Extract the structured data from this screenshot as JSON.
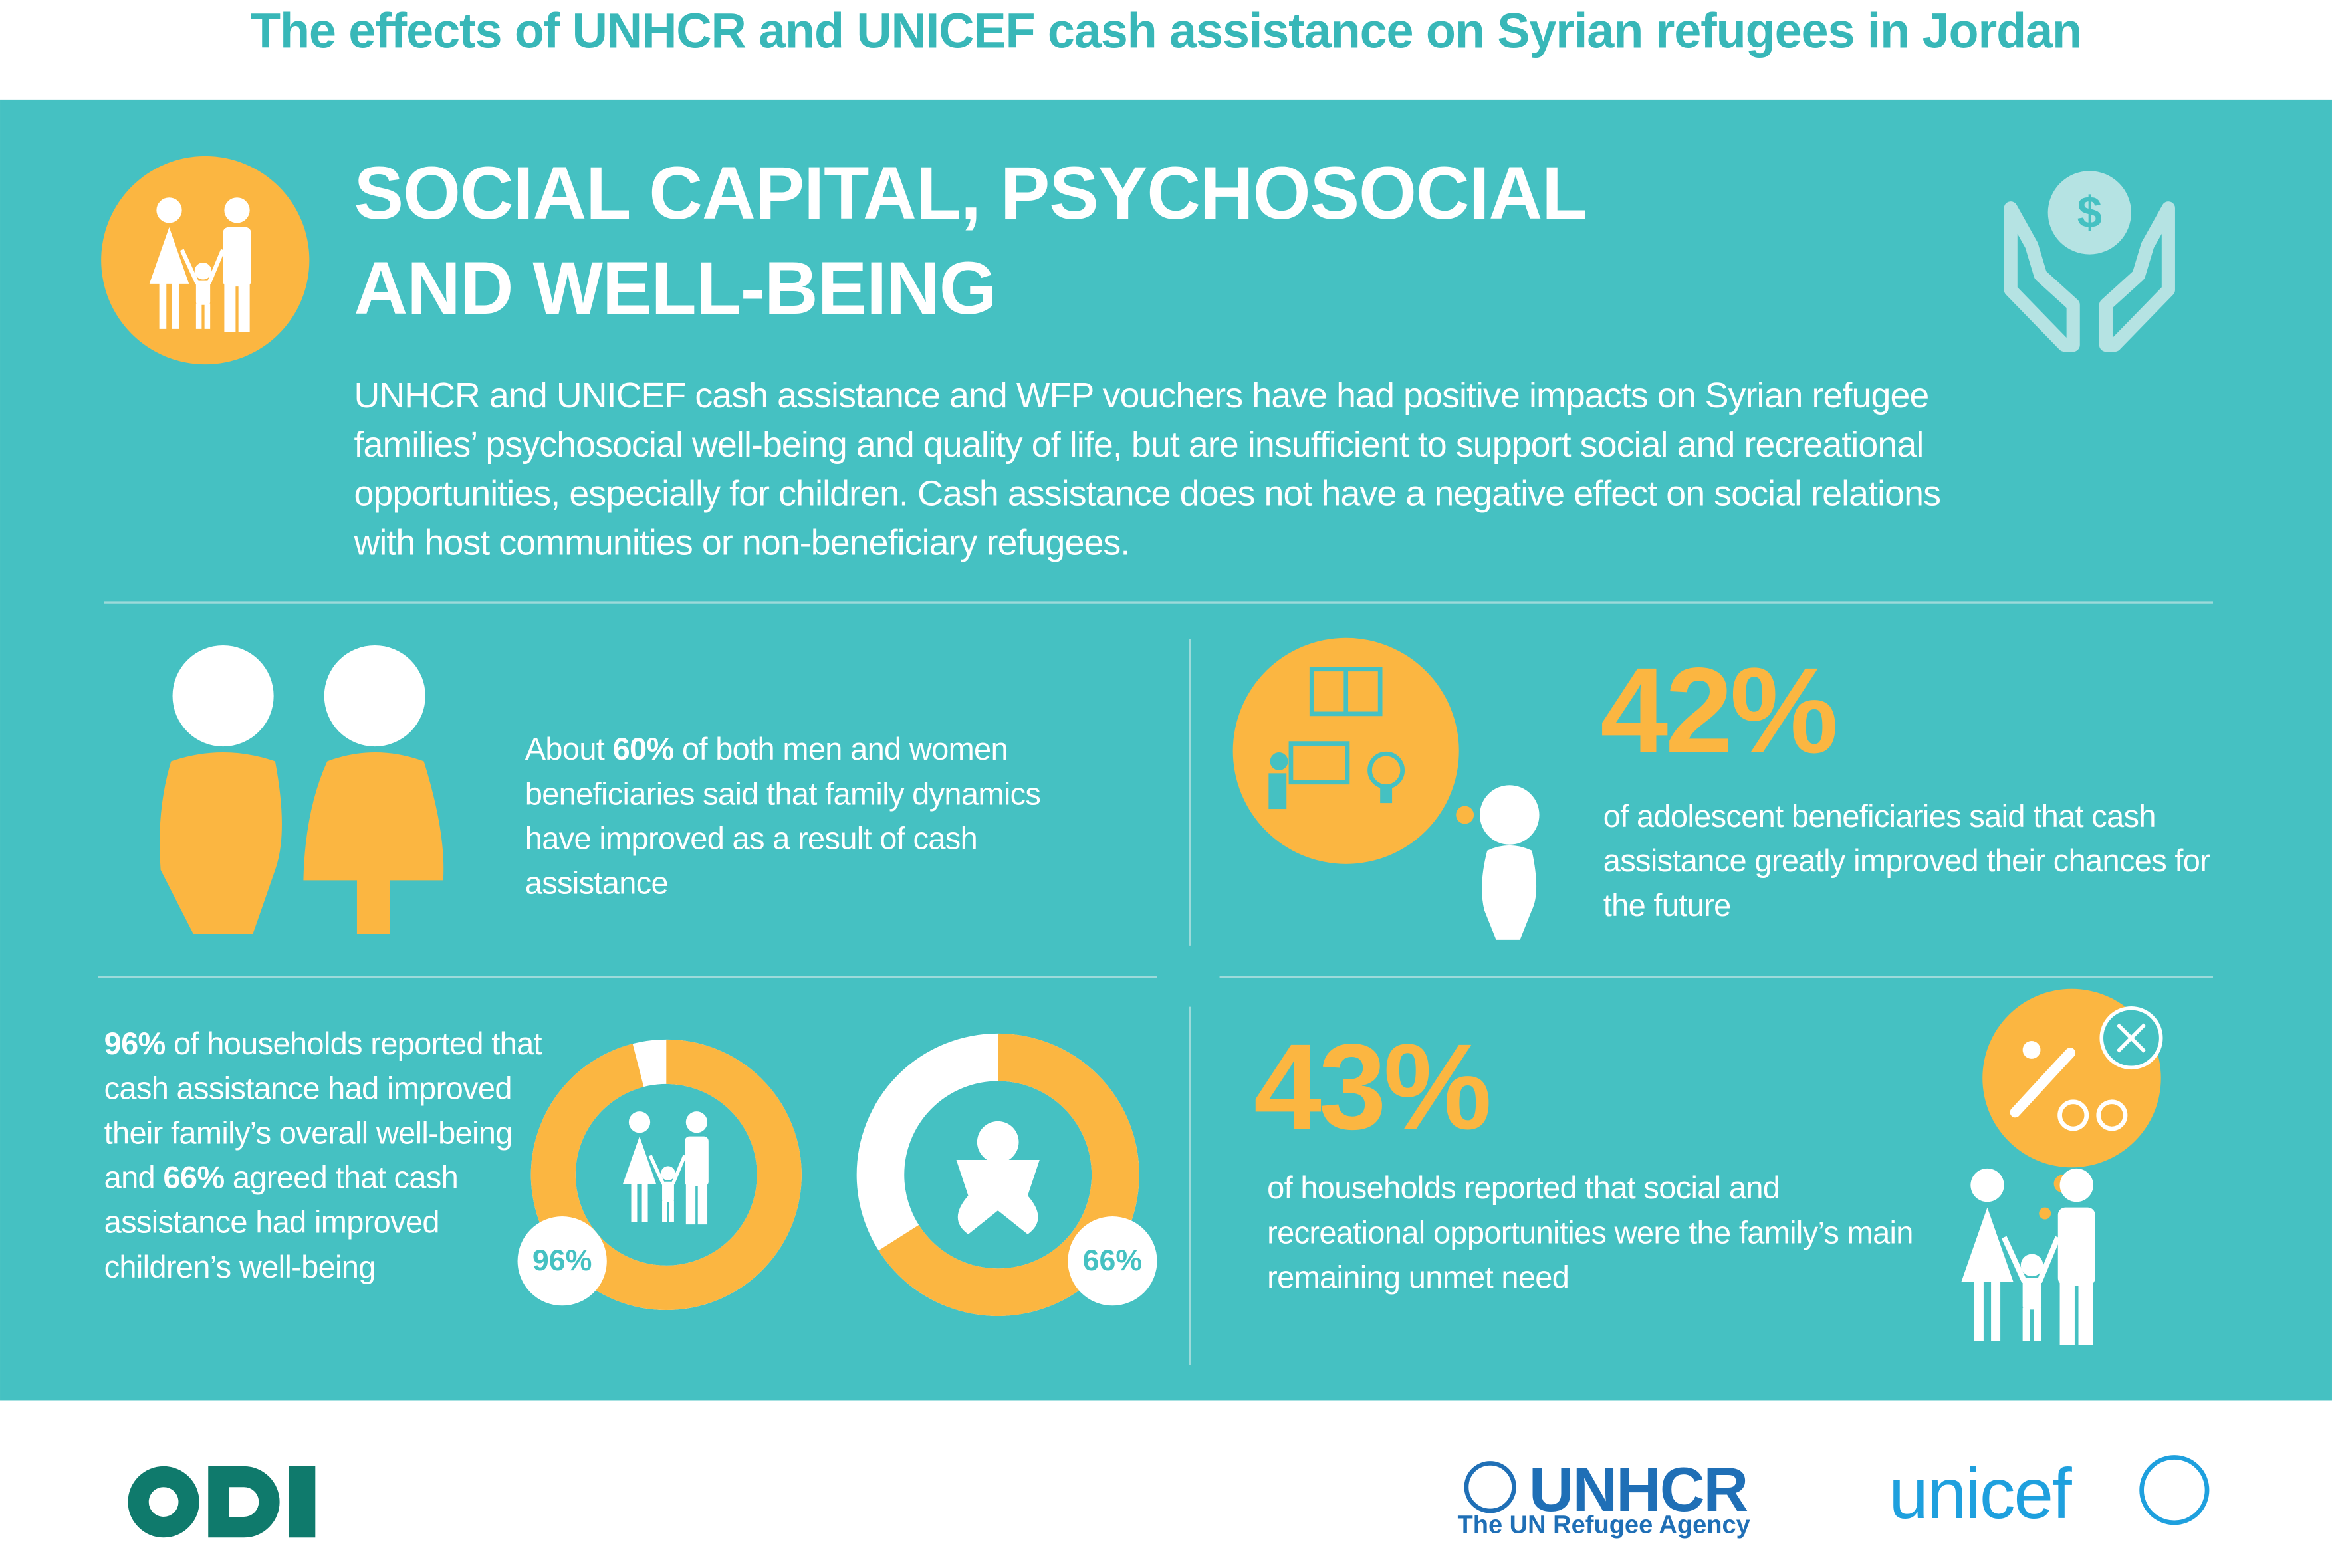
{
  "title": "The effects of UNHCR and UNICEF cash assistance on Syrian refugees in Jordan",
  "section": {
    "heading": "SOCIAL CAPITAL, PSYCHOSOCIAL AND WELL-BEING",
    "intro": "UNHCR and UNICEF cash assistance and WFP vouchers have had positive impacts on Syrian refugee families’ psychosocial well-being and quality of life, but are insufficient to support social and recreational opportunities, especially for children. Cash assistance does not have a negative effect on social relations with host communities or non-beneficiary refugees.",
    "icon_symbol": "$"
  },
  "findings": [
    {
      "segments": [
        {
          "text": "About "
        },
        {
          "text": "60%",
          "bold": true
        },
        {
          "text": " of both men and women beneficiaries said that family dynamics have improved as a result of cash assistance"
        }
      ]
    },
    {
      "stat": "42%",
      "segments": [
        {
          "text": "of adolescent beneficiaries said that cash assistance greatly improved their chances for the future"
        }
      ]
    },
    {
      "segments": [
        {
          "text": "96%",
          "bold": true
        },
        {
          "text": " of households reported that cash assistance had improved their family’s overall well-being and "
        },
        {
          "text": "66%",
          "bold": true
        },
        {
          "text": " agreed that cash assistance had improved children’s well-being"
        }
      ],
      "donuts": [
        {
          "value": 96,
          "label": "96%"
        },
        {
          "value": 66,
          "label": "66%"
        }
      ]
    },
    {
      "stat": "43%",
      "segments": [
        {
          "text": "of households reported that social and recreational opportunities were the family’s main remaining unmet need"
        }
      ]
    }
  ],
  "logos": {
    "unhcr": "UNHCR",
    "unhcr_tagline": "The UN Refugee Agency",
    "unicef": "unicef"
  }
}
